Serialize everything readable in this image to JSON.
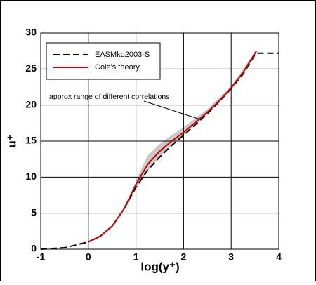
{
  "chart_data": {
    "type": "line",
    "xlabel": "log(y⁺)",
    "ylabel": "u⁺",
    "xlim": [
      -1,
      4
    ],
    "ylim": [
      0,
      30
    ],
    "xticks": [
      -1,
      0,
      1,
      2,
      3,
      4
    ],
    "yticks": [
      0,
      5,
      10,
      15,
      20,
      25,
      30
    ],
    "grid": true,
    "legend": "upper left",
    "annotation": "approx range of different correlations",
    "band": {
      "color": "#c8c8c8",
      "x": [
        1.0,
        1.25,
        1.5,
        1.75,
        2.0,
        2.5,
        3.0,
        3.5
      ],
      "lower": [
        8.4,
        10.9,
        12.8,
        14.4,
        15.9,
        18.8,
        22.1,
        26.8
      ],
      "upper": [
        9.5,
        13.0,
        14.6,
        15.8,
        16.9,
        19.4,
        22.6,
        27.3
      ]
    },
    "series": [
      {
        "name": "EASMko2003-S",
        "color": "#000000",
        "dash": true,
        "x": [
          -1,
          -0.5,
          0,
          0.25,
          0.5,
          0.75,
          1.0,
          1.25,
          1.5,
          1.75,
          2.0,
          2.25,
          2.5,
          2.75,
          3.0,
          3.25,
          3.5,
          3.55,
          4
        ],
        "values": [
          0,
          0.2,
          1.0,
          1.8,
          3.2,
          5.6,
          8.6,
          11.0,
          12.8,
          14.4,
          15.8,
          17.3,
          18.8,
          20.5,
          22.3,
          24.3,
          27.0,
          27.2,
          27.2
        ]
      },
      {
        "name": "Cole's theory",
        "color": "#cc0000",
        "dash": false,
        "x": [
          0,
          0.25,
          0.5,
          0.75,
          1.0,
          1.25,
          1.5,
          1.75,
          2.0,
          2.25,
          2.5,
          2.75,
          3.0,
          3.25,
          3.5,
          3.53
        ],
        "values": [
          1.0,
          1.8,
          3.2,
          5.6,
          9.0,
          11.8,
          13.6,
          15.0,
          16.2,
          17.6,
          19.0,
          20.6,
          22.4,
          24.5,
          27.2,
          27.5
        ]
      }
    ]
  }
}
